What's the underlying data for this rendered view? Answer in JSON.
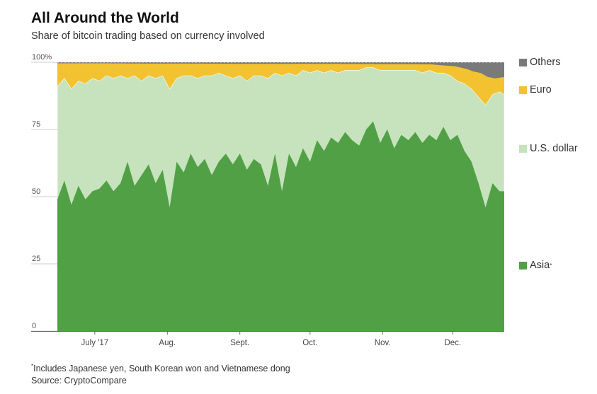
{
  "header": {
    "title": "All Around the World",
    "subtitle": "Share of bitcoin trading based on currency involved"
  },
  "footer": {
    "footnote_marker": "*",
    "footnote": "Includes Japanese yen, South Korean won and Vietnamese dong",
    "source": "Source: CryptoCompare"
  },
  "colors": {
    "asia": "#52a046",
    "usd": "#c6e3bd",
    "euro": "#f2c230",
    "others": "#7a7a7a"
  },
  "chart_data": {
    "type": "area",
    "stacked": true,
    "ylim": [
      0,
      100
    ],
    "yticks": [
      "0",
      "25",
      "50",
      "75",
      "100%"
    ],
    "ytick_values": [
      0,
      25,
      50,
      75,
      100
    ],
    "xlim": [
      0,
      191
    ],
    "xticks": [
      {
        "label": "July '17",
        "x": 16
      },
      {
        "label": "Aug.",
        "x": 47
      },
      {
        "label": "Sept.",
        "x": 78
      },
      {
        "label": "Oct.",
        "x": 108
      },
      {
        "label": "Nov.",
        "x": 139
      },
      {
        "label": "Dec.",
        "x": 169
      }
    ],
    "legend_position": "right",
    "series": [
      {
        "name": "Asia",
        "name_marker": "*",
        "color": "#52a046",
        "points": [
          [
            0,
            49
          ],
          [
            3,
            56
          ],
          [
            6,
            47
          ],
          [
            9,
            54
          ],
          [
            12,
            49
          ],
          [
            15,
            52
          ],
          [
            18,
            53
          ],
          [
            21,
            56
          ],
          [
            24,
            52
          ],
          [
            27,
            55
          ],
          [
            30,
            63
          ],
          [
            33,
            54
          ],
          [
            36,
            58
          ],
          [
            39,
            62
          ],
          [
            42,
            55
          ],
          [
            45,
            60
          ],
          [
            48,
            46
          ],
          [
            51,
            63
          ],
          [
            54,
            59
          ],
          [
            57,
            66
          ],
          [
            60,
            61
          ],
          [
            63,
            64
          ],
          [
            66,
            58
          ],
          [
            69,
            63
          ],
          [
            72,
            66
          ],
          [
            75,
            62
          ],
          [
            78,
            66
          ],
          [
            81,
            60
          ],
          [
            84,
            64
          ],
          [
            87,
            62
          ],
          [
            90,
            54
          ],
          [
            93,
            66
          ],
          [
            96,
            52
          ],
          [
            99,
            66
          ],
          [
            102,
            61
          ],
          [
            105,
            68
          ],
          [
            108,
            63
          ],
          [
            111,
            71
          ],
          [
            114,
            67
          ],
          [
            117,
            72
          ],
          [
            120,
            70
          ],
          [
            123,
            74
          ],
          [
            126,
            71
          ],
          [
            129,
            69
          ],
          [
            132,
            75
          ],
          [
            135,
            78
          ],
          [
            138,
            70
          ],
          [
            141,
            75
          ],
          [
            144,
            68
          ],
          [
            147,
            73
          ],
          [
            150,
            71
          ],
          [
            153,
            74
          ],
          [
            156,
            70
          ],
          [
            159,
            73
          ],
          [
            162,
            71
          ],
          [
            165,
            76
          ],
          [
            168,
            71
          ],
          [
            171,
            73
          ],
          [
            174,
            67
          ],
          [
            177,
            63
          ],
          [
            180,
            55
          ],
          [
            183,
            46
          ],
          [
            186,
            55
          ],
          [
            189,
            52
          ],
          [
            191,
            52
          ]
        ]
      },
      {
        "name": "U.S. dollar",
        "color": "#c6e3bd",
        "points": [
          [
            0,
            91
          ],
          [
            3,
            94
          ],
          [
            6,
            90
          ],
          [
            9,
            93
          ],
          [
            12,
            92
          ],
          [
            15,
            94
          ],
          [
            18,
            93
          ],
          [
            21,
            95
          ],
          [
            24,
            94
          ],
          [
            27,
            95
          ],
          [
            30,
            94
          ],
          [
            33,
            95
          ],
          [
            36,
            93
          ],
          [
            39,
            95
          ],
          [
            42,
            94
          ],
          [
            45,
            95
          ],
          [
            48,
            90
          ],
          [
            51,
            94
          ],
          [
            54,
            95
          ],
          [
            57,
            95
          ],
          [
            60,
            94
          ],
          [
            63,
            95
          ],
          [
            66,
            95
          ],
          [
            69,
            96
          ],
          [
            72,
            95
          ],
          [
            75,
            94
          ],
          [
            78,
            95
          ],
          [
            81,
            93
          ],
          [
            84,
            95
          ],
          [
            87,
            95
          ],
          [
            90,
            94
          ],
          [
            93,
            96
          ],
          [
            96,
            95
          ],
          [
            99,
            96
          ],
          [
            102,
            95
          ],
          [
            105,
            97
          ],
          [
            108,
            96
          ],
          [
            111,
            97
          ],
          [
            114,
            96
          ],
          [
            117,
            97
          ],
          [
            120,
            96
          ],
          [
            123,
            97
          ],
          [
            126,
            97
          ],
          [
            129,
            97
          ],
          [
            132,
            98
          ],
          [
            135,
            98
          ],
          [
            138,
            97
          ],
          [
            141,
            97
          ],
          [
            144,
            97
          ],
          [
            147,
            97
          ],
          [
            150,
            97
          ],
          [
            153,
            97
          ],
          [
            156,
            96
          ],
          [
            159,
            97
          ],
          [
            162,
            96
          ],
          [
            165,
            96
          ],
          [
            168,
            95
          ],
          [
            171,
            93
          ],
          [
            174,
            92
          ],
          [
            177,
            90
          ],
          [
            180,
            87
          ],
          [
            183,
            84
          ],
          [
            186,
            88
          ],
          [
            189,
            89
          ],
          [
            191,
            88
          ]
        ]
      },
      {
        "name": "Euro",
        "color": "#f2c230",
        "points": [
          [
            0,
            99.6
          ],
          [
            20,
            99.6
          ],
          [
            40,
            99.5
          ],
          [
            60,
            99.5
          ],
          [
            80,
            99.4
          ],
          [
            100,
            99.4
          ],
          [
            120,
            99.4
          ],
          [
            140,
            99.3
          ],
          [
            150,
            99.3
          ],
          [
            160,
            99.2
          ],
          [
            165,
            98.8
          ],
          [
            170,
            98.5
          ],
          [
            175,
            97.5
          ],
          [
            178,
            96.5
          ],
          [
            181,
            96
          ],
          [
            184,
            94.5
          ],
          [
            187,
            94
          ],
          [
            191,
            94.5
          ]
        ]
      },
      {
        "name": "Others",
        "color": "#7a7a7a",
        "points": [
          [
            0,
            100
          ],
          [
            191,
            100
          ]
        ]
      }
    ]
  }
}
